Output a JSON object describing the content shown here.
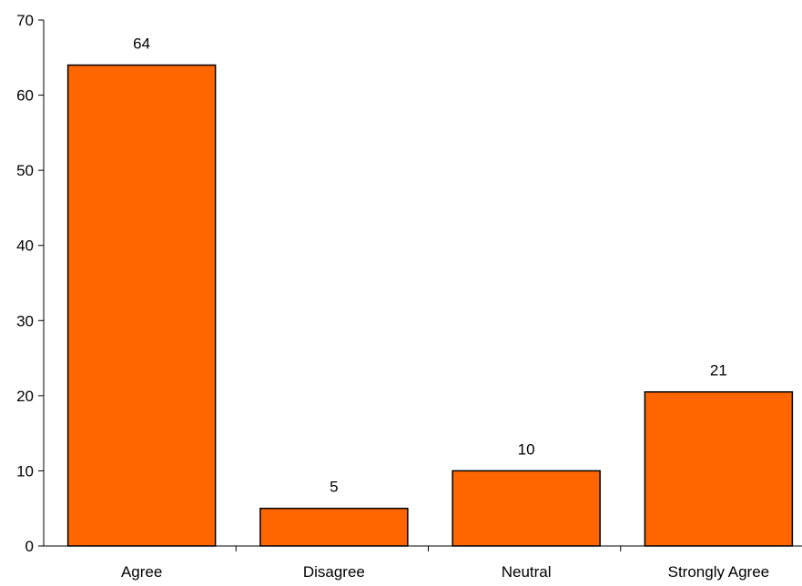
{
  "chart_data": {
    "type": "bar",
    "categories": [
      "Agree",
      "Disagree",
      "Neutral",
      "Strongly Agree"
    ],
    "values": [
      64,
      5,
      10,
      20.5
    ],
    "data_labels": [
      "64",
      "5",
      "10",
      "21"
    ],
    "title": "",
    "xlabel": "",
    "ylabel": "",
    "ylim": [
      0,
      70
    ],
    "yticks": [
      0,
      10,
      20,
      30,
      40,
      50,
      60,
      70
    ],
    "grid": false,
    "legend": "none",
    "colors": {
      "bar_fill": "#FF6600",
      "bar_stroke": "#000000",
      "axis": "#000000",
      "background": "#FFFFFF"
    }
  }
}
